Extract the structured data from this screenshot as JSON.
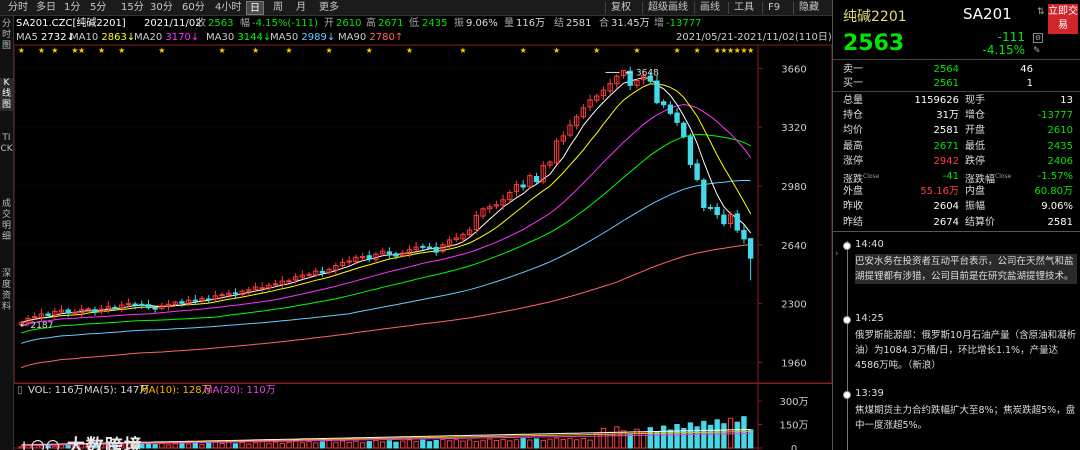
{
  "toolbar": {
    "periods": [
      "分时",
      "多日",
      "1分",
      "5分",
      "15分",
      "30分",
      "60分",
      "4小时",
      "日",
      "周",
      "月",
      "更多"
    ],
    "active_period": "日",
    "tools": [
      "复权",
      "超级画线",
      "画线",
      "工具",
      "F9",
      "隐藏"
    ]
  },
  "left_tabs": [
    "分时图",
    "K线图",
    "TICK",
    "成交明细",
    "深度资料"
  ],
  "info": {
    "code": "SA201.CZC[纯碱2201]",
    "date": "2021/11/02",
    "close_label": "收",
    "close": "2563",
    "amp_label": "幅",
    "change": "-4.15%(-111)",
    "open_label": "开",
    "open": "2610",
    "high_label": "高",
    "high": "2671",
    "low_label": "低",
    "low": "2435",
    "swing_label": "振",
    "swing": "9.06%",
    "vol_label": "量",
    "vol": "116万",
    "settle_label": "结",
    "settle": "2581",
    "oi_label": "合",
    "oi": "31.45万",
    "oichg_label": "增",
    "oichg": "-13777"
  },
  "ma": [
    {
      "label": "MA5",
      "value": "2732↓",
      "color": "#ffffff"
    },
    {
      "label": "MA10",
      "value": "2863↓",
      "color": "#ffff00"
    },
    {
      "label": "MA20",
      "value": "3170↓",
      "color": "#ff33ff"
    },
    {
      "label": "MA30",
      "value": "3144↓",
      "color": "#00ff00"
    },
    {
      "label": "MA50",
      "value": "2989↓",
      "color": "#66ccff"
    },
    {
      "label": "MA90",
      "value": "2780↑",
      "color": "#ff6666"
    }
  ],
  "range_label": "2021/05/21-2021/11/02(110日)",
  "chart_data": {
    "type": "candlestick",
    "price_axis": {
      "ticks": [
        3660,
        3320,
        2980,
        2640,
        2300,
        1960
      ],
      "ylim": [
        1870,
        3720
      ]
    },
    "annotations": {
      "high_marker": "3648",
      "low_marker": "2187"
    },
    "star_markers": true,
    "price_path": [
      2190,
      2215,
      2225,
      2240,
      2230,
      2255,
      2262,
      2245,
      2250,
      2265,
      2270,
      2255,
      2268,
      2282,
      2276,
      2291,
      2300,
      2295,
      2289,
      2276,
      2269,
      2287,
      2296,
      2308,
      2302,
      2320,
      2315,
      2330,
      2325,
      2345,
      2352,
      2360,
      2358,
      2372,
      2380,
      2396,
      2392,
      2406,
      2414,
      2430,
      2432,
      2455,
      2465,
      2470,
      2488,
      2478,
      2498,
      2520,
      2538,
      2546,
      2568,
      2572,
      2558,
      2586,
      2604,
      2589,
      2575,
      2592,
      2612,
      2627,
      2630,
      2624,
      2598,
      2640,
      2668,
      2680,
      2700,
      2725,
      2810,
      2848,
      2860,
      2872,
      2900,
      2942,
      2988,
      2974,
      3040,
      3005,
      3098,
      3118,
      3240,
      3270,
      3332,
      3380,
      3432,
      3478,
      3500,
      3534,
      3572,
      3615,
      3648,
      3562,
      3590,
      3618,
      3586,
      3462,
      3450,
      3400,
      3348,
      3266,
      3105,
      3018,
      2856,
      2852,
      2815,
      2762,
      2814,
      2725,
      2674,
      2563
    ],
    "volume_axis": {
      "ticks": [
        "300万",
        "150万",
        "0"
      ],
      "max": 300
    },
    "vol_ma": {
      "VOL": "116万",
      "MA5": "147万",
      "MA10": "128万",
      "MA20": "110万"
    }
  },
  "quote": {
    "name": "纯碱2201",
    "code": "SA201",
    "price": "2563",
    "change": "-111",
    "pct": "-4.15%",
    "trade_button": "立即交易",
    "sell1": {
      "label": "卖一",
      "price": "2564",
      "vol": "46"
    },
    "buy1": {
      "label": "买一",
      "price": "2561",
      "vol": "1"
    },
    "rows": [
      {
        "l1": "总量",
        "v1": "1159626",
        "c1": "#ffffff",
        "l2": "现手",
        "v2": "13",
        "c2": "#ffffff"
      },
      {
        "l1": "持仓",
        "v1": "31万",
        "c1": "#ffffff",
        "l2": "增仓",
        "v2": "-13777",
        "c2": "#00e600"
      },
      {
        "l1": "均价",
        "v1": "2581",
        "c1": "#ffffff",
        "l2": "开盘",
        "v2": "2610",
        "c2": "#00e600"
      },
      {
        "l1": "最高",
        "v1": "2671",
        "c1": "#00e600",
        "l2": "最低",
        "v2": "2435",
        "c2": "#00e600"
      },
      {
        "l1": "涨停",
        "v1": "2942",
        "c1": "#ff4040",
        "l2": "跌停",
        "v2": "2406",
        "c2": "#00e600"
      },
      {
        "l1": "涨跌",
        "sup1": "Close",
        "v1": "-41",
        "c1": "#00e600",
        "l2": "涨跌幅",
        "sup2": "Close",
        "v2": "-1.57%",
        "c2": "#00e600"
      },
      {
        "l1": "外盘",
        "v1": "55.16万",
        "c1": "#ff4040",
        "l2": "内盘",
        "v2": "60.80万",
        "c2": "#00e600"
      },
      {
        "l1": "昨收",
        "v1": "2604",
        "c1": "#ffffff",
        "l2": "振幅",
        "v2": "9.06%",
        "c2": "#ffffff"
      },
      {
        "l1": "昨结",
        "v1": "2674",
        "c1": "#ffffff",
        "l2": "结算价",
        "v2": "2581",
        "c2": "#ffffff"
      }
    ]
  },
  "news": [
    {
      "time": "14:40",
      "text": "巴安水务在投资者互动平台表示，公司在天然气和盐湖提锂都有涉猎，公司目前是在研究盐湖提锂技术。"
    },
    {
      "time": "14:25",
      "text": "俄罗斯能源部：俄罗斯10月石油产量（含原油和凝析油）为1084.3万桶/日，环比增长1.1%，产量达4586万吨。（新浪）"
    },
    {
      "time": "13:39",
      "text": "焦煤期货主力合约跌幅扩大至8%；焦炭跌超5%，盘中一度涨超5%。"
    }
  ],
  "watermark": {
    "text": "大数跨境",
    "logo": "ᒪ〇〇"
  }
}
